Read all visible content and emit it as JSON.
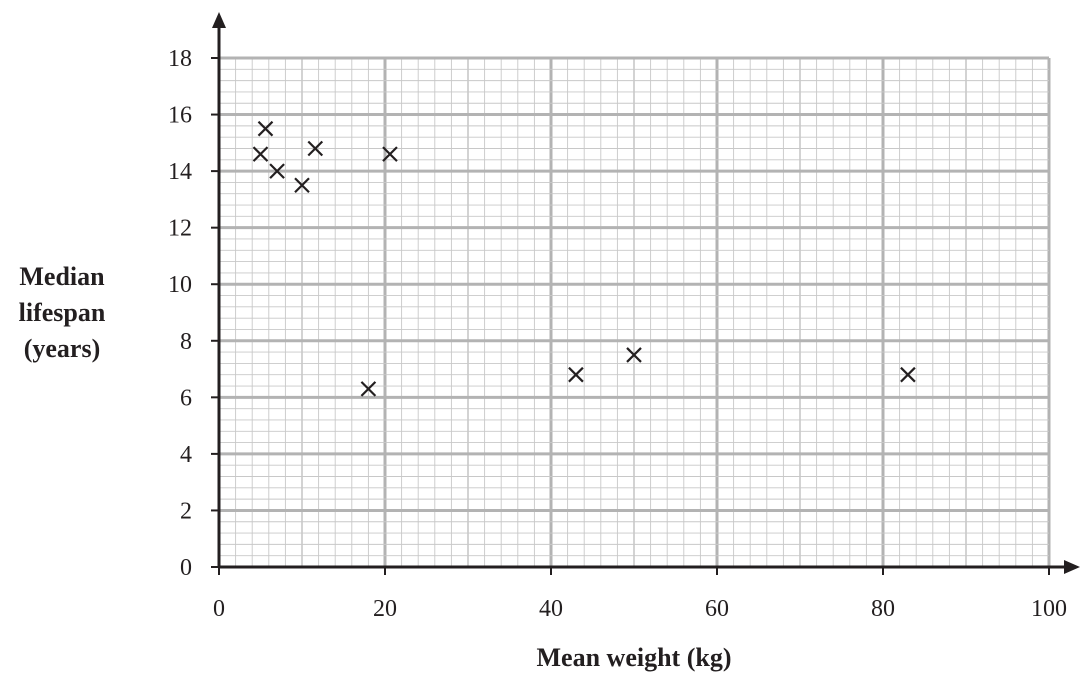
{
  "chart_data": {
    "type": "scatter",
    "title": "",
    "xlabel": "Mean weight (kg)",
    "ylabel_lines": [
      "Median",
      "lifespan",
      "(years)"
    ],
    "xlim": [
      0,
      100
    ],
    "ylim": [
      0,
      18
    ],
    "x_ticks": [
      0,
      20,
      40,
      60,
      80,
      100
    ],
    "y_ticks": [
      0,
      2,
      4,
      6,
      8,
      10,
      12,
      14,
      16,
      18
    ],
    "x_minor_step": 2,
    "y_minor_step": 0.4,
    "marker": "cross",
    "grid": true,
    "points": [
      {
        "x": 5,
        "y": 14.6
      },
      {
        "x": 5.6,
        "y": 15.5
      },
      {
        "x": 7,
        "y": 14
      },
      {
        "x": 10,
        "y": 13.5
      },
      {
        "x": 11.6,
        "y": 14.8
      },
      {
        "x": 18,
        "y": 6.3
      },
      {
        "x": 20.6,
        "y": 14.6
      },
      {
        "x": 43,
        "y": 6.8
      },
      {
        "x": 50,
        "y": 7.5
      },
      {
        "x": 83,
        "y": 6.8
      }
    ],
    "colors": {
      "grid_minor": "#c8c8c8",
      "grid_major": "#b3b3b3",
      "axis": "#231f20",
      "marker": "#231f20"
    }
  }
}
